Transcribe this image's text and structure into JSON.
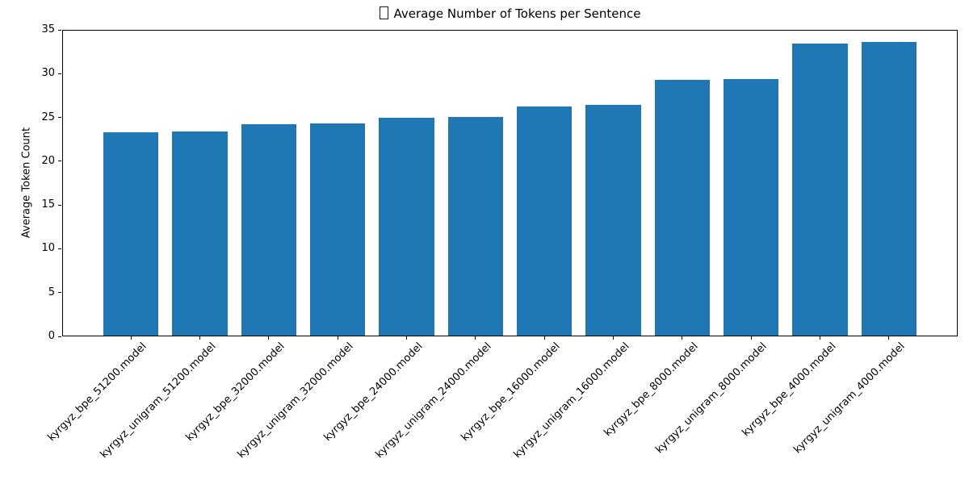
{
  "chart_data": {
    "type": "bar",
    "title": "Average Number of Tokens per Sentence",
    "title_prefix_glyph": "missing-glyph-box",
    "xlabel": "",
    "ylabel": "Average Token Count",
    "categories": [
      "kyrgyz_bpe_51200.model",
      "kyrgyz_unigram_51200.model",
      "kyrgyz_bpe_32000.model",
      "kyrgyz_unigram_32000.model",
      "kyrgyz_bpe_24000.model",
      "kyrgyz_unigram_24000.model",
      "kyrgyz_bpe_16000.model",
      "kyrgyz_unigram_16000.model",
      "kyrgyz_bpe_8000.model",
      "kyrgyz_unigram_8000.model",
      "kyrgyz_bpe_4000.model",
      "kyrgyz_unigram_4000.model"
    ],
    "values": [
      23.3,
      23.4,
      24.2,
      24.3,
      25.0,
      25.1,
      26.3,
      26.4,
      29.3,
      29.4,
      33.4,
      33.6
    ],
    "ylim": [
      0,
      35
    ],
    "yticks": [
      0,
      5,
      10,
      15,
      20,
      25,
      30,
      35
    ],
    "bar_color": "#1f77b4",
    "grid": false,
    "legend": null,
    "x_tick_rotation_deg": 45
  }
}
